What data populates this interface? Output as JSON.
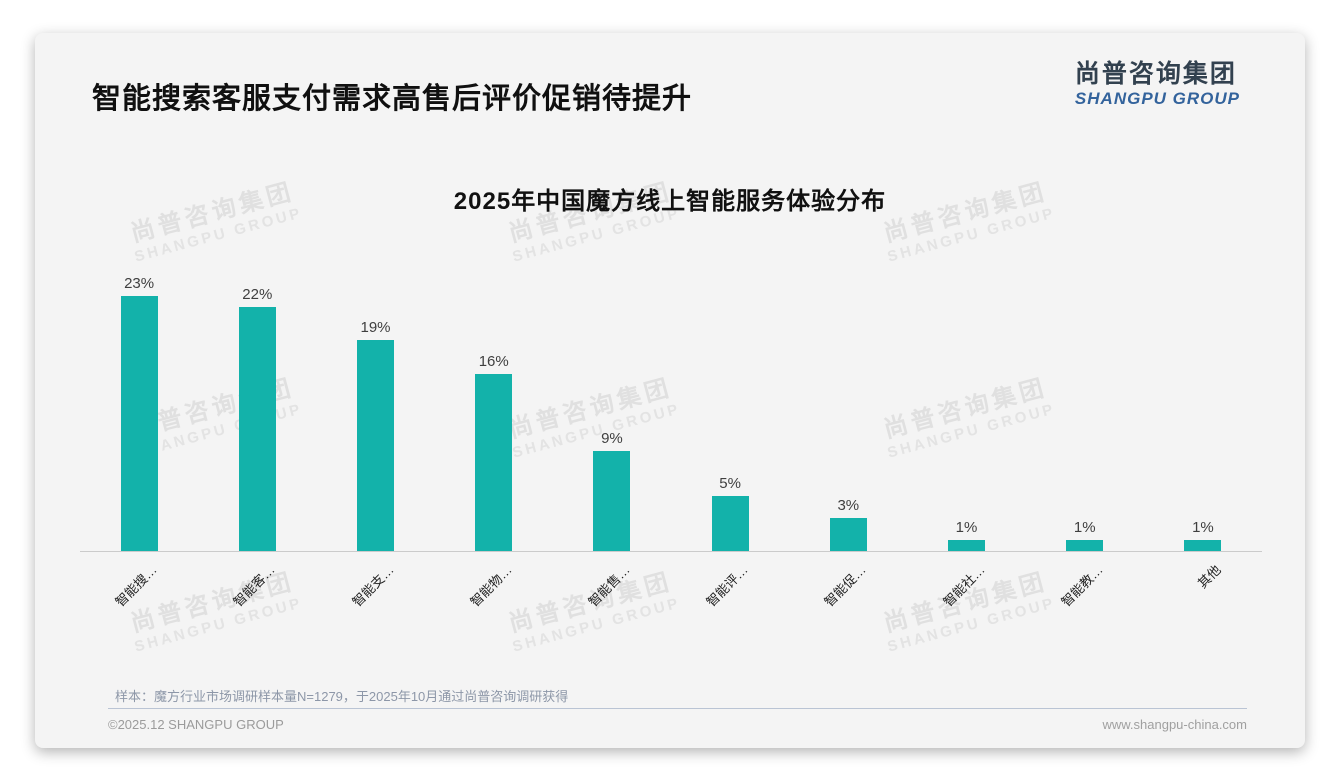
{
  "header": {
    "title": "智能搜索客服支付需求高售后评价促销待提升",
    "logo": {
      "cn": "尚普咨询集团",
      "en": "SHANGPU GROUP"
    }
  },
  "chart_data": {
    "type": "bar",
    "title": "2025年中国魔方线上智能服务体验分布",
    "categories": [
      "智能搜…",
      "智能客…",
      "智能支…",
      "智能物…",
      "智能售…",
      "智能评…",
      "智能促…",
      "智能社…",
      "智能教…",
      "其他"
    ],
    "values": [
      23,
      22,
      19,
      16,
      9,
      5,
      3,
      1,
      1,
      1
    ],
    "value_suffix": "%",
    "bar_color": "#13b2aa",
    "xlabel": "",
    "ylabel": "",
    "ylim": [
      0,
      25
    ],
    "grid": false,
    "legend": false
  },
  "watermark": {
    "line1": "尚普咨询集团",
    "line2": "SHANGPU GROUP"
  },
  "footnote": "样本：魔方行业市场调研样本量N=1279，于2025年10月通过尚普咨询调研获得",
  "footer": {
    "left": "©2025.12 SHANGPU GROUP",
    "right": "www.shangpu-china.com"
  }
}
